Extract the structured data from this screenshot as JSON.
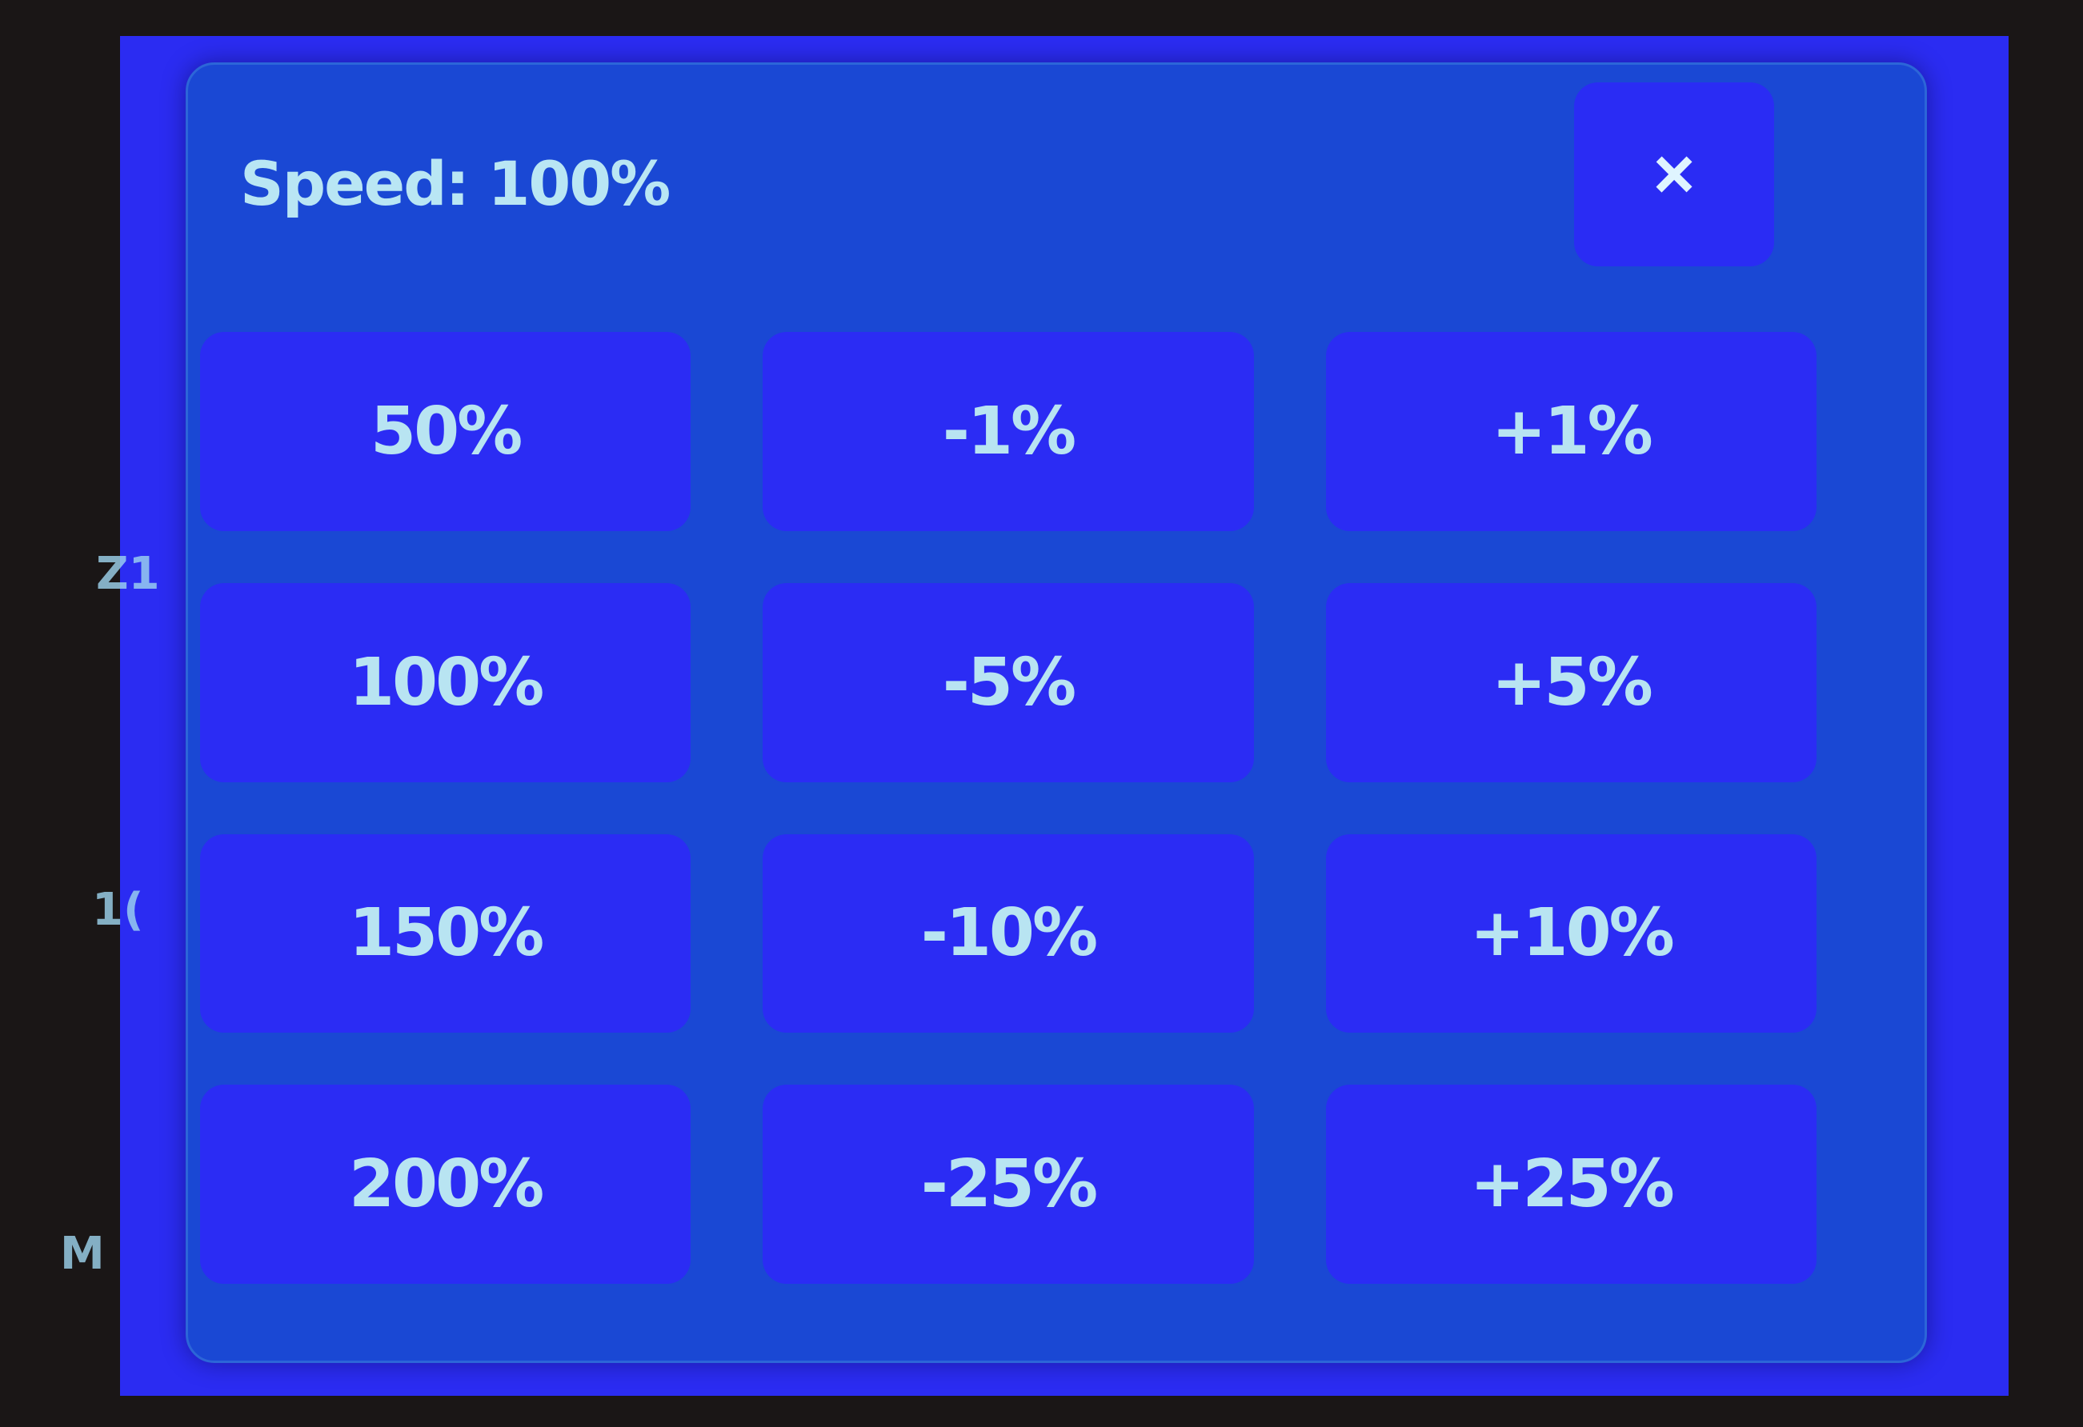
{
  "background_fragments": [
    "Z1",
    "1(",
    "M"
  ],
  "dialog": {
    "title": "Speed: 100%",
    "close_label": "×",
    "close_icon": "close-icon",
    "buttons": [
      [
        "50%",
        "-1%",
        "+1%"
      ],
      [
        "100%",
        "-5%",
        "+5%"
      ],
      [
        "150%",
        "-10%",
        "+10%"
      ],
      [
        "200%",
        "-25%",
        "+25%"
      ]
    ]
  },
  "colors": {
    "screen": "#2b2cf2",
    "dialog": "#1a48d4",
    "button": "#2b2cf4",
    "text": "#b8e4f2"
  }
}
